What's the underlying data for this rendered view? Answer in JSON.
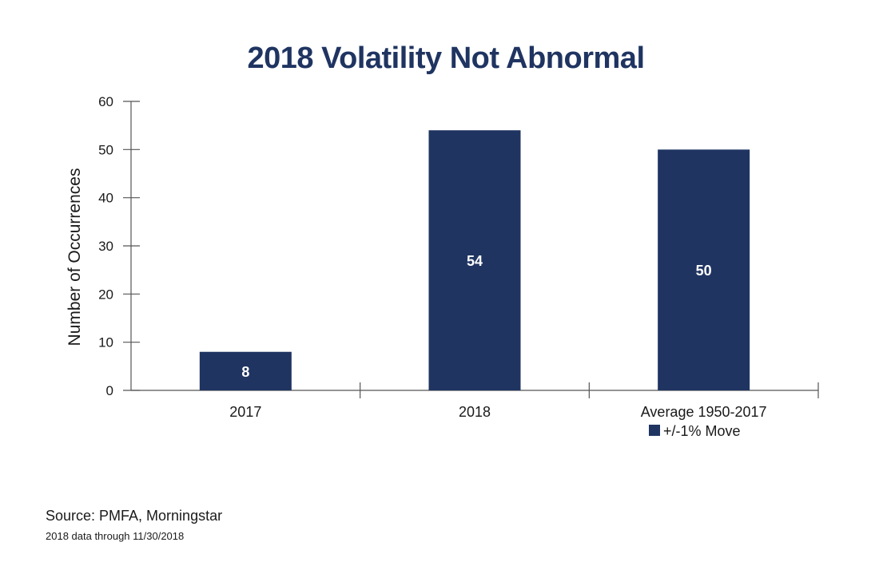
{
  "chart_data": {
    "type": "bar",
    "title": "2018 Volatility Not Abnormal",
    "categories": [
      "2017",
      "2018",
      "Average 1950-2017"
    ],
    "series": [
      {
        "name": "+/-1% Move",
        "values": [
          8,
          54,
          50
        ],
        "color": "#1f3461"
      }
    ],
    "data_labels": [
      "8",
      "54",
      "50"
    ],
    "xlabel": "",
    "ylabel": "Number of Occurrences",
    "ylim": [
      0,
      60
    ],
    "yticks": [
      0,
      10,
      20,
      30,
      40,
      50,
      60
    ],
    "grid": false,
    "legend": "bottom-right"
  },
  "footer": {
    "source": "Source: PMFA, Morningstar",
    "note": "2018 data through 11/30/2018"
  }
}
